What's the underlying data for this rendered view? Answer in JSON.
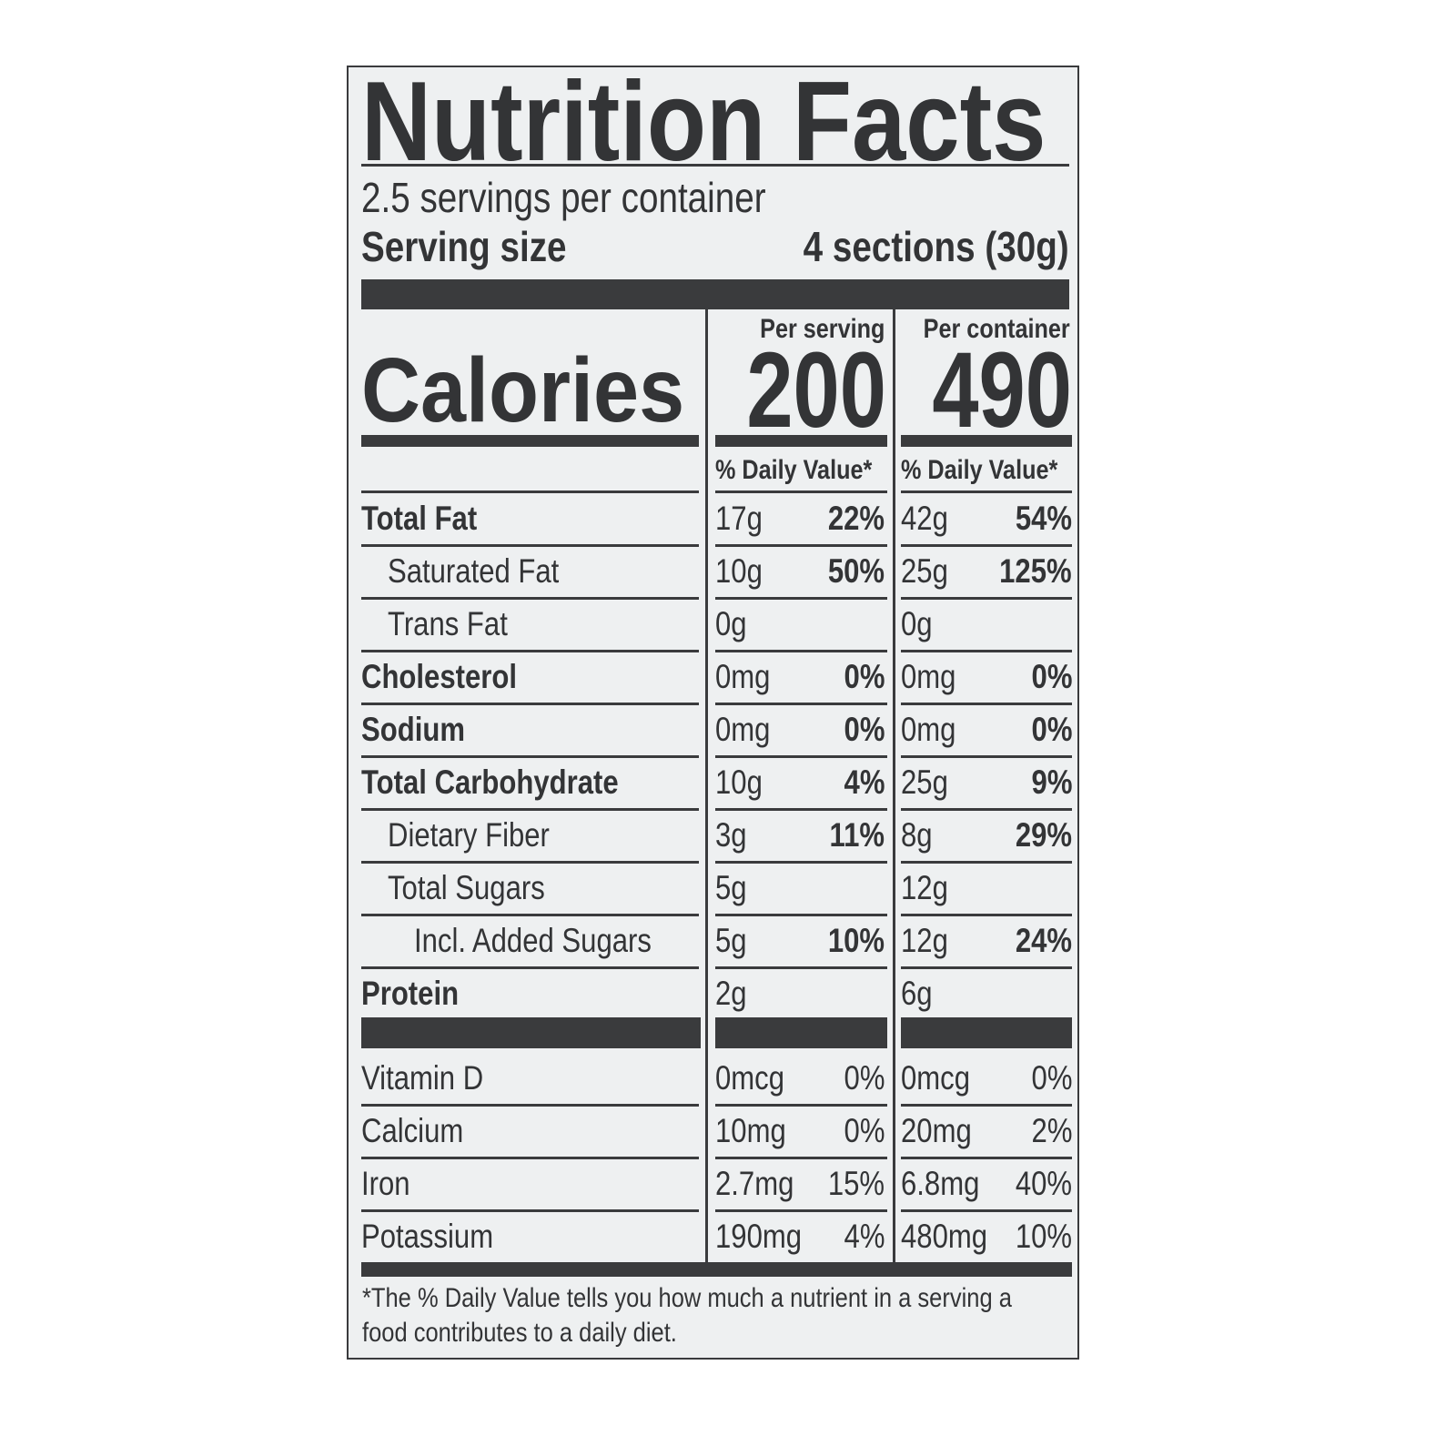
{
  "title": "Nutrition Facts",
  "servings_per_container": "2.5 servings per container",
  "serving_size_label": "Serving size",
  "serving_size_value": "4 sections (30g)",
  "columns": {
    "per_serving": "Per serving",
    "per_container": "Per container"
  },
  "calories": {
    "label": "Calories",
    "per_serving": "200",
    "per_container": "490"
  },
  "daily_value_header": "% Daily Value*",
  "nutrients": [
    {
      "name": "Total Fat",
      "bold": true,
      "indent": 0,
      "serving_amount": "17g",
      "serving_dv": "22%",
      "container_amount": "42g",
      "container_dv": "54%"
    },
    {
      "name": "Saturated Fat",
      "bold": false,
      "indent": 1,
      "serving_amount": "10g",
      "serving_dv": "50%",
      "container_amount": "25g",
      "container_dv": "125%"
    },
    {
      "name": "Trans Fat",
      "bold": false,
      "indent": 1,
      "serving_amount": "0g",
      "serving_dv": "",
      "container_amount": "0g",
      "container_dv": ""
    },
    {
      "name": "Cholesterol",
      "bold": true,
      "indent": 0,
      "serving_amount": "0mg",
      "serving_dv": "0%",
      "container_amount": "0mg",
      "container_dv": "0%"
    },
    {
      "name": "Sodium",
      "bold": true,
      "indent": 0,
      "serving_amount": "0mg",
      "serving_dv": "0%",
      "container_amount": "0mg",
      "container_dv": "0%"
    },
    {
      "name": "Total Carbohydrate",
      "bold": true,
      "indent": 0,
      "serving_amount": "10g",
      "serving_dv": "4%",
      "container_amount": "25g",
      "container_dv": "9%"
    },
    {
      "name": "Dietary Fiber",
      "bold": false,
      "indent": 1,
      "serving_amount": "3g",
      "serving_dv": "11%",
      "container_amount": "8g",
      "container_dv": "29%"
    },
    {
      "name": "Total Sugars",
      "bold": false,
      "indent": 1,
      "serving_amount": "5g",
      "serving_dv": "",
      "container_amount": "12g",
      "container_dv": ""
    },
    {
      "name": "Incl. Added Sugars",
      "bold": false,
      "indent": 2,
      "serving_amount": "5g",
      "serving_dv": "10%",
      "container_amount": "12g",
      "container_dv": "24%"
    },
    {
      "name": "Protein",
      "bold": true,
      "indent": 0,
      "serving_amount": "2g",
      "serving_dv": "",
      "container_amount": "6g",
      "container_dv": ""
    }
  ],
  "vitamins": [
    {
      "name": "Vitamin D",
      "serving_amount": "0mcg",
      "serving_dv": "0%",
      "container_amount": "0mcg",
      "container_dv": "0%"
    },
    {
      "name": "Calcium",
      "serving_amount": "10mg",
      "serving_dv": "0%",
      "container_amount": "20mg",
      "container_dv": "2%"
    },
    {
      "name": "Iron",
      "serving_amount": "2.7mg",
      "serving_dv": "15%",
      "container_amount": "6.8mg",
      "container_dv": "40%"
    },
    {
      "name": "Potassium",
      "serving_amount": "190mg",
      "serving_dv": "4%",
      "container_amount": "480mg",
      "container_dv": "10%"
    }
  ],
  "footnote": "*The % Daily Value tells you how much a nutrient in a serving a food contributes to a daily diet.",
  "colors": {
    "ink": "#333436",
    "background": "#eef0f1"
  }
}
